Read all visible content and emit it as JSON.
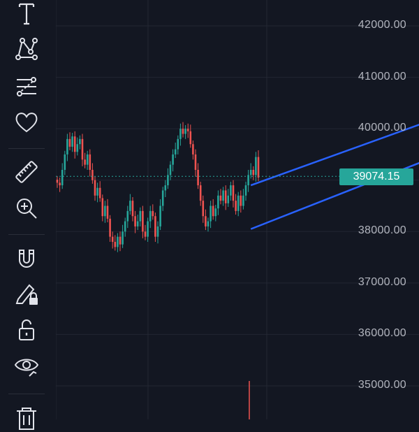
{
  "colors": {
    "background": "#131722",
    "grid": "#232733",
    "up_candle": "#26a69a",
    "down_candle": "#ef5350",
    "channel_line": "#2962ff",
    "price_badge": "#26a69a",
    "price_line": "#26a69a",
    "icon": "#e1e3ea",
    "axis_text": "#b2b5be"
  },
  "toolbar": {
    "tools": [
      {
        "icon": "text-tool-icon"
      },
      {
        "icon": "pattern-tool-icon"
      },
      {
        "icon": "fib-retracement-icon"
      },
      {
        "icon": "favorites-heart-icon"
      },
      {
        "icon": "ruler-measure-icon"
      },
      {
        "icon": "zoom-in-icon"
      },
      {
        "icon": "magnet-icon"
      },
      {
        "icon": "lock-drawing-icon"
      },
      {
        "icon": "unlock-icon"
      },
      {
        "icon": "hide-eye-icon"
      },
      {
        "icon": "trash-icon"
      }
    ]
  },
  "price_axis": {
    "labels": [
      "42000.00",
      "41000.00",
      "40000.00",
      "38000.00",
      "37000.00",
      "36000.00",
      "35000.00"
    ],
    "current_price": "39074.15"
  },
  "chart_data": {
    "type": "candlestick",
    "ylim": [
      34500,
      42500
    ],
    "y_ticks": [
      35000,
      36000,
      37000,
      38000,
      39000,
      40000,
      41000,
      42000
    ],
    "last_price": 39074.15,
    "closes": [
      38950,
      38900,
      39200,
      39500,
      39800,
      39650,
      39850,
      39550,
      39700,
      39800,
      39400,
      39300,
      39500,
      39200,
      39000,
      38700,
      38850,
      38650,
      38300,
      38500,
      38250,
      37900,
      37800,
      37700,
      37900,
      37750,
      38000,
      38200,
      38400,
      38600,
      38300,
      38100,
      38200,
      38400,
      38000,
      37900,
      38200,
      38400,
      38300,
      37900,
      38100,
      38500,
      38800,
      38900,
      39100,
      39300,
      39500,
      39600,
      39800,
      40000,
      39900,
      40000,
      39950,
      39700,
      39500,
      39200,
      38900,
      38600,
      38300,
      38100,
      38200,
      38500,
      38300,
      38450,
      38700,
      38600,
      38800,
      38550,
      38700,
      38900,
      38600,
      38400,
      38700,
      38500,
      38700,
      38900,
      39100,
      39200,
      39100,
      39450,
      39050
    ],
    "channel": {
      "upper": {
        "start": [
          77,
          38900
        ],
        "end": [
          148,
          40150
        ]
      },
      "lower": {
        "start": [
          77,
          38050
        ],
        "end": [
          150,
          39450
        ]
      }
    }
  }
}
